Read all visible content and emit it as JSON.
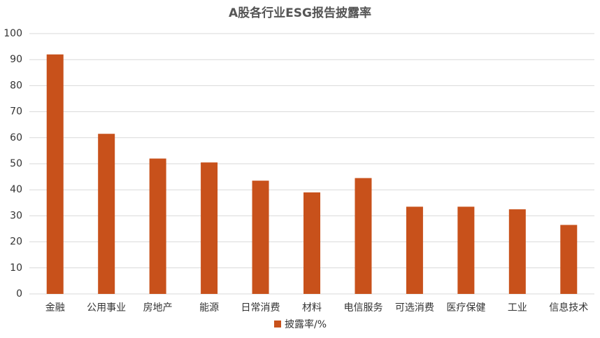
{
  "chart_data": {
    "type": "bar",
    "title": "A股各行业ESG报告披露率",
    "categories": [
      "金融",
      "公用事业",
      "房地产",
      "能源",
      "日常消费",
      "材料",
      "电信服务",
      "可选消费",
      "医疗保健",
      "工业",
      "信息技术"
    ],
    "series": [
      {
        "name": "披露率/%",
        "color": "#c8511b",
        "values": [
          92,
          61.5,
          52,
          50.5,
          43.5,
          39,
          44.5,
          33.5,
          33.5,
          32.5,
          26.5
        ]
      }
    ],
    "ylim": [
      0,
      100
    ],
    "yticks": [
      0,
      10,
      20,
      30,
      40,
      50,
      60,
      70,
      80,
      90,
      100
    ],
    "grid": true,
    "legend": "bottom"
  }
}
